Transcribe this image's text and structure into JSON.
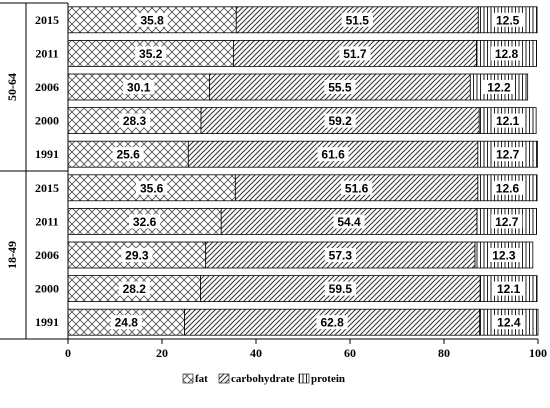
{
  "chart_data": {
    "type": "bar",
    "stacked": true,
    "orientation": "horizontal",
    "xlim": [
      0,
      100
    ],
    "xticks": [
      "0",
      "20",
      "40",
      "60",
      "80",
      "100"
    ],
    "grid": false,
    "legend_position": "bottom",
    "groups": [
      {
        "name": "50-64",
        "years": [
          "2015",
          "2011",
          "2006",
          "2000",
          "1991"
        ]
      },
      {
        "name": "18-49",
        "years": [
          "2015",
          "2011",
          "2006",
          "2000",
          "1991"
        ]
      }
    ],
    "categories": [
      "50-64 2015",
      "50-64 2011",
      "50-64 2006",
      "50-64 2000",
      "50-64 1991",
      "18-49 2015",
      "18-49 2011",
      "18-49 2006",
      "18-49 2000",
      "18-49 1991"
    ],
    "series": [
      {
        "name": "fat",
        "values": [
          35.8,
          35.2,
          30.1,
          28.3,
          25.6,
          35.6,
          32.6,
          29.3,
          28.2,
          24.8
        ]
      },
      {
        "name": "carbohydrate",
        "values": [
          51.5,
          51.7,
          55.5,
          59.2,
          61.6,
          51.6,
          54.4,
          57.3,
          59.5,
          62.8
        ]
      },
      {
        "name": "protein",
        "values": [
          12.5,
          12.8,
          12.2,
          12.1,
          12.7,
          12.6,
          12.7,
          12.3,
          12.1,
          12.4
        ]
      }
    ],
    "value_labels": [
      [
        "35.8",
        "35.2",
        "30.1",
        "28.3",
        "25.6",
        "35.6",
        "32.6",
        "29.3",
        "28.2",
        "24.8"
      ],
      [
        "51.5",
        "51.7",
        "55.5",
        "59.2",
        "61.6",
        "51.6",
        "54.4",
        "57.3",
        "59.5",
        "62.8"
      ],
      [
        "12.5",
        "12.8",
        "12.2",
        "12.1",
        "12.7",
        "12.6",
        "12.7",
        "12.3",
        "12.1",
        "12.4"
      ]
    ]
  },
  "colors": {
    "fill": "#ffffff",
    "stroke": "#000000",
    "pattern": "#404040"
  }
}
